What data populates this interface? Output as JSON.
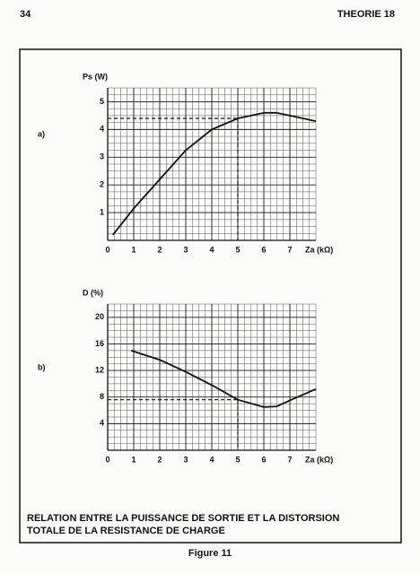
{
  "header": {
    "page_number": "34",
    "section": "THEORIE 18"
  },
  "panel_labels": [
    "a)",
    "b)"
  ],
  "caption": [
    "RELATION ENTRE LA PUISSANCE DE SORTIE ET LA DISTORSION",
    "TOTALE DE LA RESISTANCE DE CHARGE"
  ],
  "figure_label": "Figure 11",
  "chart_data": [
    {
      "type": "line",
      "y_label": "Ps (W)",
      "x_label": "Za (kΩ)",
      "x": [
        0.2,
        1,
        2,
        3,
        4,
        5,
        6,
        6.5,
        7,
        8
      ],
      "series": [
        {
          "name": "Ps",
          "color": "#111111",
          "values": [
            0.2,
            1.15,
            2.2,
            3.25,
            4.0,
            4.4,
            4.6,
            4.6,
            4.5,
            4.3
          ]
        }
      ],
      "xlim": [
        0,
        8
      ],
      "ylim": [
        0,
        5.5
      ],
      "xticks": [
        0,
        1,
        2,
        3,
        4,
        5,
        6,
        7
      ],
      "yticks": [
        1,
        2,
        3,
        4,
        5
      ],
      "grid": true,
      "minor_grid": 4,
      "marker_x": 5,
      "marker_y": 4.4
    },
    {
      "type": "line",
      "y_label": "D (%)",
      "x_label": "Za (kΩ)",
      "x": [
        0.9,
        2,
        3,
        4,
        5,
        6,
        6.5,
        7,
        8
      ],
      "series": [
        {
          "name": "D",
          "color": "#111111",
          "values": [
            15,
            13.6,
            11.8,
            9.8,
            7.6,
            6.5,
            6.6,
            7.5,
            9.2
          ]
        }
      ],
      "xlim": [
        0,
        8
      ],
      "ylim": [
        0,
        22
      ],
      "xticks": [
        0,
        1,
        2,
        3,
        4,
        5,
        6,
        7
      ],
      "yticks": [
        4,
        8,
        12,
        16,
        20
      ],
      "grid": true,
      "minor_grid": 4,
      "marker_x": 5,
      "marker_y": 7.6
    }
  ]
}
